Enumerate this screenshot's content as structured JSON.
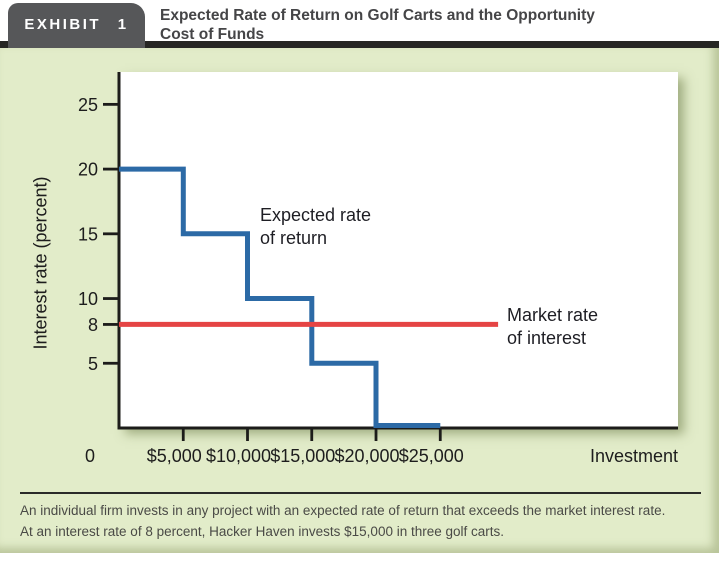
{
  "header": {
    "badge_label": "EXHIBIT 1",
    "title": "Expected Rate of Return on Golf Carts and the Opportunity\nCost of Funds"
  },
  "chart_data": {
    "type": "line",
    "subtype": "step",
    "title": "Expected Rate of Return on Golf Carts and the Opportunity Cost of Funds",
    "xlabel": "Investment",
    "ylabel": "Interest rate (percent)",
    "origin_label": "0",
    "xlim": [
      0,
      43500
    ],
    "ylim": [
      0,
      27.5
    ],
    "grid": false,
    "legend": "inline-annotations",
    "x_ticks": [
      {
        "value": 5000,
        "label": "$5,000"
      },
      {
        "value": 10000,
        "label": "$10,000"
      },
      {
        "value": 15000,
        "label": "$15,000"
      },
      {
        "value": 20000,
        "label": "$20,000"
      },
      {
        "value": 25000,
        "label": "$25,000"
      }
    ],
    "y_ticks": [
      {
        "value": 25,
        "label": "25"
      },
      {
        "value": 20,
        "label": "20"
      },
      {
        "value": 15,
        "label": "15"
      },
      {
        "value": 10,
        "label": "10"
      },
      {
        "value": 8,
        "label": "8"
      },
      {
        "value": 5,
        "label": "5"
      }
    ],
    "series": [
      {
        "name": "Expected rate of return",
        "color": "#2c6aa6",
        "style": "step",
        "points": [
          [
            0,
            20
          ],
          [
            5000,
            20
          ],
          [
            5000,
            15
          ],
          [
            10000,
            15
          ],
          [
            10000,
            10
          ],
          [
            15000,
            10
          ],
          [
            15000,
            5
          ],
          [
            20000,
            5
          ],
          [
            20000,
            0
          ],
          [
            25000,
            0
          ]
        ]
      },
      {
        "name": "Market rate of interest",
        "color": "#e54444",
        "style": "line",
        "points": [
          [
            0,
            8
          ],
          [
            29500,
            8
          ]
        ]
      }
    ],
    "annotations": [
      {
        "label": "Expected rate\nof return",
        "series": "Expected rate of return"
      },
      {
        "label": "Market rate\nof interest",
        "series": "Market rate of interest"
      }
    ]
  },
  "footer": {
    "caption": "An individual firm invests in any project with an expected rate of return that exceeds the market interest rate.\nAt an interest rate of 8 percent, Hacker Haven invests $15,000 in three golf carts."
  },
  "colors": {
    "panel_green": "#e2ecc9",
    "badge_gray": "#565759",
    "header_bar": "#262624",
    "axis_black": "#1c1c1a",
    "line_blue": "#2c6aa6",
    "line_red": "#e54444"
  }
}
